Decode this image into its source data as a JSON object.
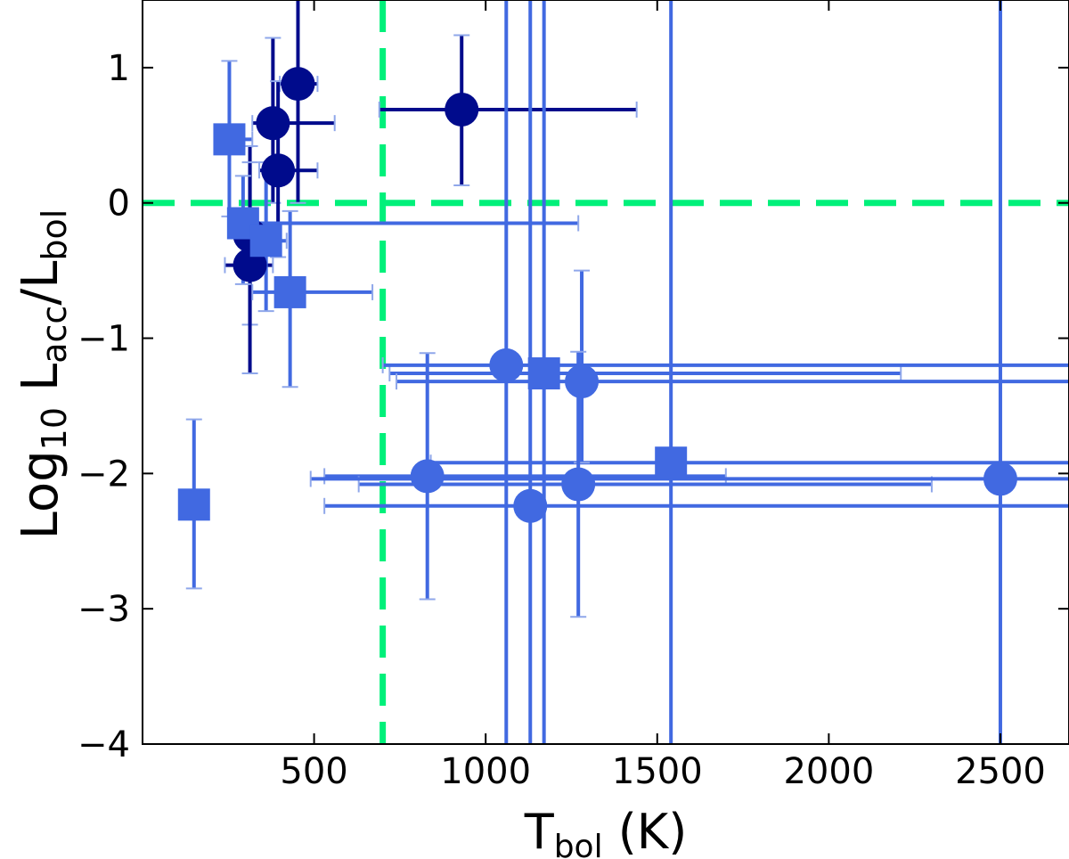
{
  "chart_data": {
    "type": "scatter",
    "title": "",
    "xlabel": {
      "main": "T",
      "sub": "bol",
      "suffix": " (K)"
    },
    "ylabel": {
      "prefix": "Log",
      "prefix_sub": "10",
      "num": "L",
      "num_sub": "acc",
      "slash": "/",
      "den": "L",
      "den_sub": "bol"
    },
    "xlim": [
      0,
      2700
    ],
    "ylim": [
      -4,
      1.5
    ],
    "xticks": [
      500,
      1000,
      1500,
      2000,
      2500
    ],
    "yticks": [
      -4,
      -3,
      -2,
      -1,
      0,
      1
    ],
    "ytick_labels": [
      "−4",
      "−3",
      "−2",
      "−1",
      "0",
      "1"
    ],
    "grid": false,
    "reference_lines": [
      {
        "orientation": "horizontal",
        "value": 0,
        "color": "#00f07a",
        "style": "dashed"
      },
      {
        "orientation": "vertical",
        "value": 700,
        "color": "#00f07a",
        "style": "dashed"
      }
    ],
    "colors": {
      "dark": "#000b8c",
      "light": "#4169e1"
    },
    "series": [
      {
        "color": "#000b8c",
        "marker": "circle",
        "points": [
          {
            "x": 453,
            "y": 0.88,
            "xlo": 400,
            "xhi": 510,
            "ylo": 0.0,
            "yhi": 1.55
          },
          {
            "x": 380,
            "y": 0.59,
            "xlo": 320,
            "xhi": 560,
            "ylo": 0.0,
            "yhi": 1.22
          },
          {
            "x": 930,
            "y": 0.69,
            "xlo": 690,
            "xhi": 1440,
            "ylo": 0.13,
            "yhi": 1.24
          },
          {
            "x": 395,
            "y": 0.24,
            "xlo": 340,
            "xhi": 510,
            "ylo": -0.4,
            "yhi": 0.9
          },
          {
            "x": 313,
            "y": -0.24,
            "xlo": 280,
            "xhi": 350,
            "ylo": -0.9,
            "yhi": 0.42
          },
          {
            "x": 313,
            "y": -0.46,
            "xlo": 240,
            "xhi": 380,
            "ylo": -1.26,
            "yhi": 0.3
          }
        ]
      },
      {
        "color": "#4169e1",
        "marker": "square",
        "points": [
          {
            "x": 253,
            "y": 0.47,
            "xlo": 220,
            "xhi": 320,
            "ylo": -0.1,
            "yhi": 1.05
          },
          {
            "x": 293,
            "y": -0.15,
            "xlo": 250,
            "xhi": 1270,
            "ylo": -0.6,
            "yhi": 0.2
          },
          {
            "x": 360,
            "y": -0.28,
            "xlo": 300,
            "xhi": 420,
            "ylo": -0.8,
            "yhi": 0.3
          },
          {
            "x": 430,
            "y": -0.66,
            "xlo": 320,
            "xhi": 670,
            "ylo": -1.36,
            "yhi": -0.06
          },
          {
            "x": 1170,
            "y": -1.26,
            "xlo": 720,
            "xhi": 2210,
            "ylo": -4.0,
            "yhi": 1.5
          },
          {
            "x": 1540,
            "y": -1.92,
            "xlo": 840,
            "xhi": 2700,
            "ylo": -4.0,
            "yhi": 1.5
          },
          {
            "x": 150,
            "y": -2.23,
            "xlo": 150,
            "xhi": 150,
            "ylo": -2.85,
            "yhi": -1.6
          }
        ]
      },
      {
        "color": "#4169e1",
        "marker": "circle",
        "points": [
          {
            "x": 1060,
            "y": -1.2,
            "xlo": 700,
            "xhi": 2700,
            "ylo": -4.0,
            "yhi": 1.5
          },
          {
            "x": 1280,
            "y": -1.32,
            "xlo": 740,
            "xhi": 2700,
            "ylo": -1.92,
            "yhi": -0.5
          },
          {
            "x": 830,
            "y": -2.02,
            "xlo": 530,
            "xhi": 1700,
            "ylo": -2.93,
            "yhi": -1.11
          },
          {
            "x": 1130,
            "y": -2.24,
            "xlo": 530,
            "xhi": 2700,
            "ylo": -4.0,
            "yhi": 1.5
          },
          {
            "x": 1270,
            "y": -2.08,
            "xlo": 630,
            "xhi": 2300,
            "ylo": -3.06,
            "yhi": -1.1
          },
          {
            "x": 2500,
            "y": -2.04,
            "xlo": 490,
            "xhi": 2700,
            "ylo": -4.0,
            "yhi": 1.5
          }
        ]
      }
    ]
  }
}
